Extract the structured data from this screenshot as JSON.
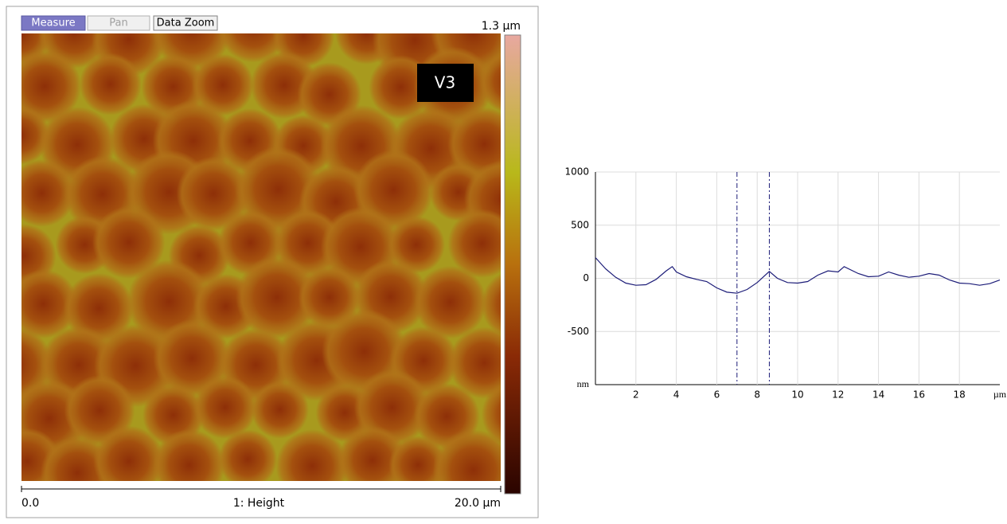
{
  "toolbar": {
    "buttons": [
      "Measure",
      "Pan",
      "Data Zoom"
    ]
  },
  "image": {
    "label": "V3",
    "scale_max": "1.3 µm",
    "x_start": "0.0",
    "channel": "1: Height",
    "x_end": "20.0 µm"
  },
  "chart_data": {
    "type": "line",
    "x": [
      0,
      0.5,
      1,
      1.5,
      2,
      2.5,
      3,
      3.5,
      3.8,
      4,
      4.5,
      5,
      5.5,
      6,
      6.5,
      7,
      7.5,
      8,
      8.6,
      9,
      9.5,
      10,
      10.5,
      11,
      11.5,
      12,
      12.3,
      13,
      13.5,
      14,
      14.5,
      15,
      15.5,
      16,
      16.5,
      17,
      17.5,
      18,
      18.5,
      19,
      19.5,
      20
    ],
    "values": [
      195,
      90,
      10,
      -45,
      -65,
      -60,
      -10,
      70,
      110,
      60,
      15,
      -10,
      -30,
      -90,
      -130,
      -140,
      -105,
      -40,
      65,
      0,
      -40,
      -45,
      -30,
      30,
      70,
      60,
      110,
      45,
      15,
      20,
      60,
      30,
      10,
      20,
      45,
      30,
      -15,
      -45,
      -50,
      -65,
      -50,
      -15
    ],
    "color": "#1c1c78",
    "cursors": [
      7,
      8.6
    ],
    "xlim": [
      0,
      20
    ],
    "ylim": [
      -1000,
      1000
    ],
    "xticks": [
      2,
      4,
      6,
      8,
      10,
      12,
      14,
      16,
      18,
      {
        "value": 20,
        "label": "µm"
      }
    ],
    "yticks": [
      {
        "value": -1000,
        "label": "nm"
      },
      -500,
      0,
      500,
      1000
    ],
    "grid": true
  }
}
